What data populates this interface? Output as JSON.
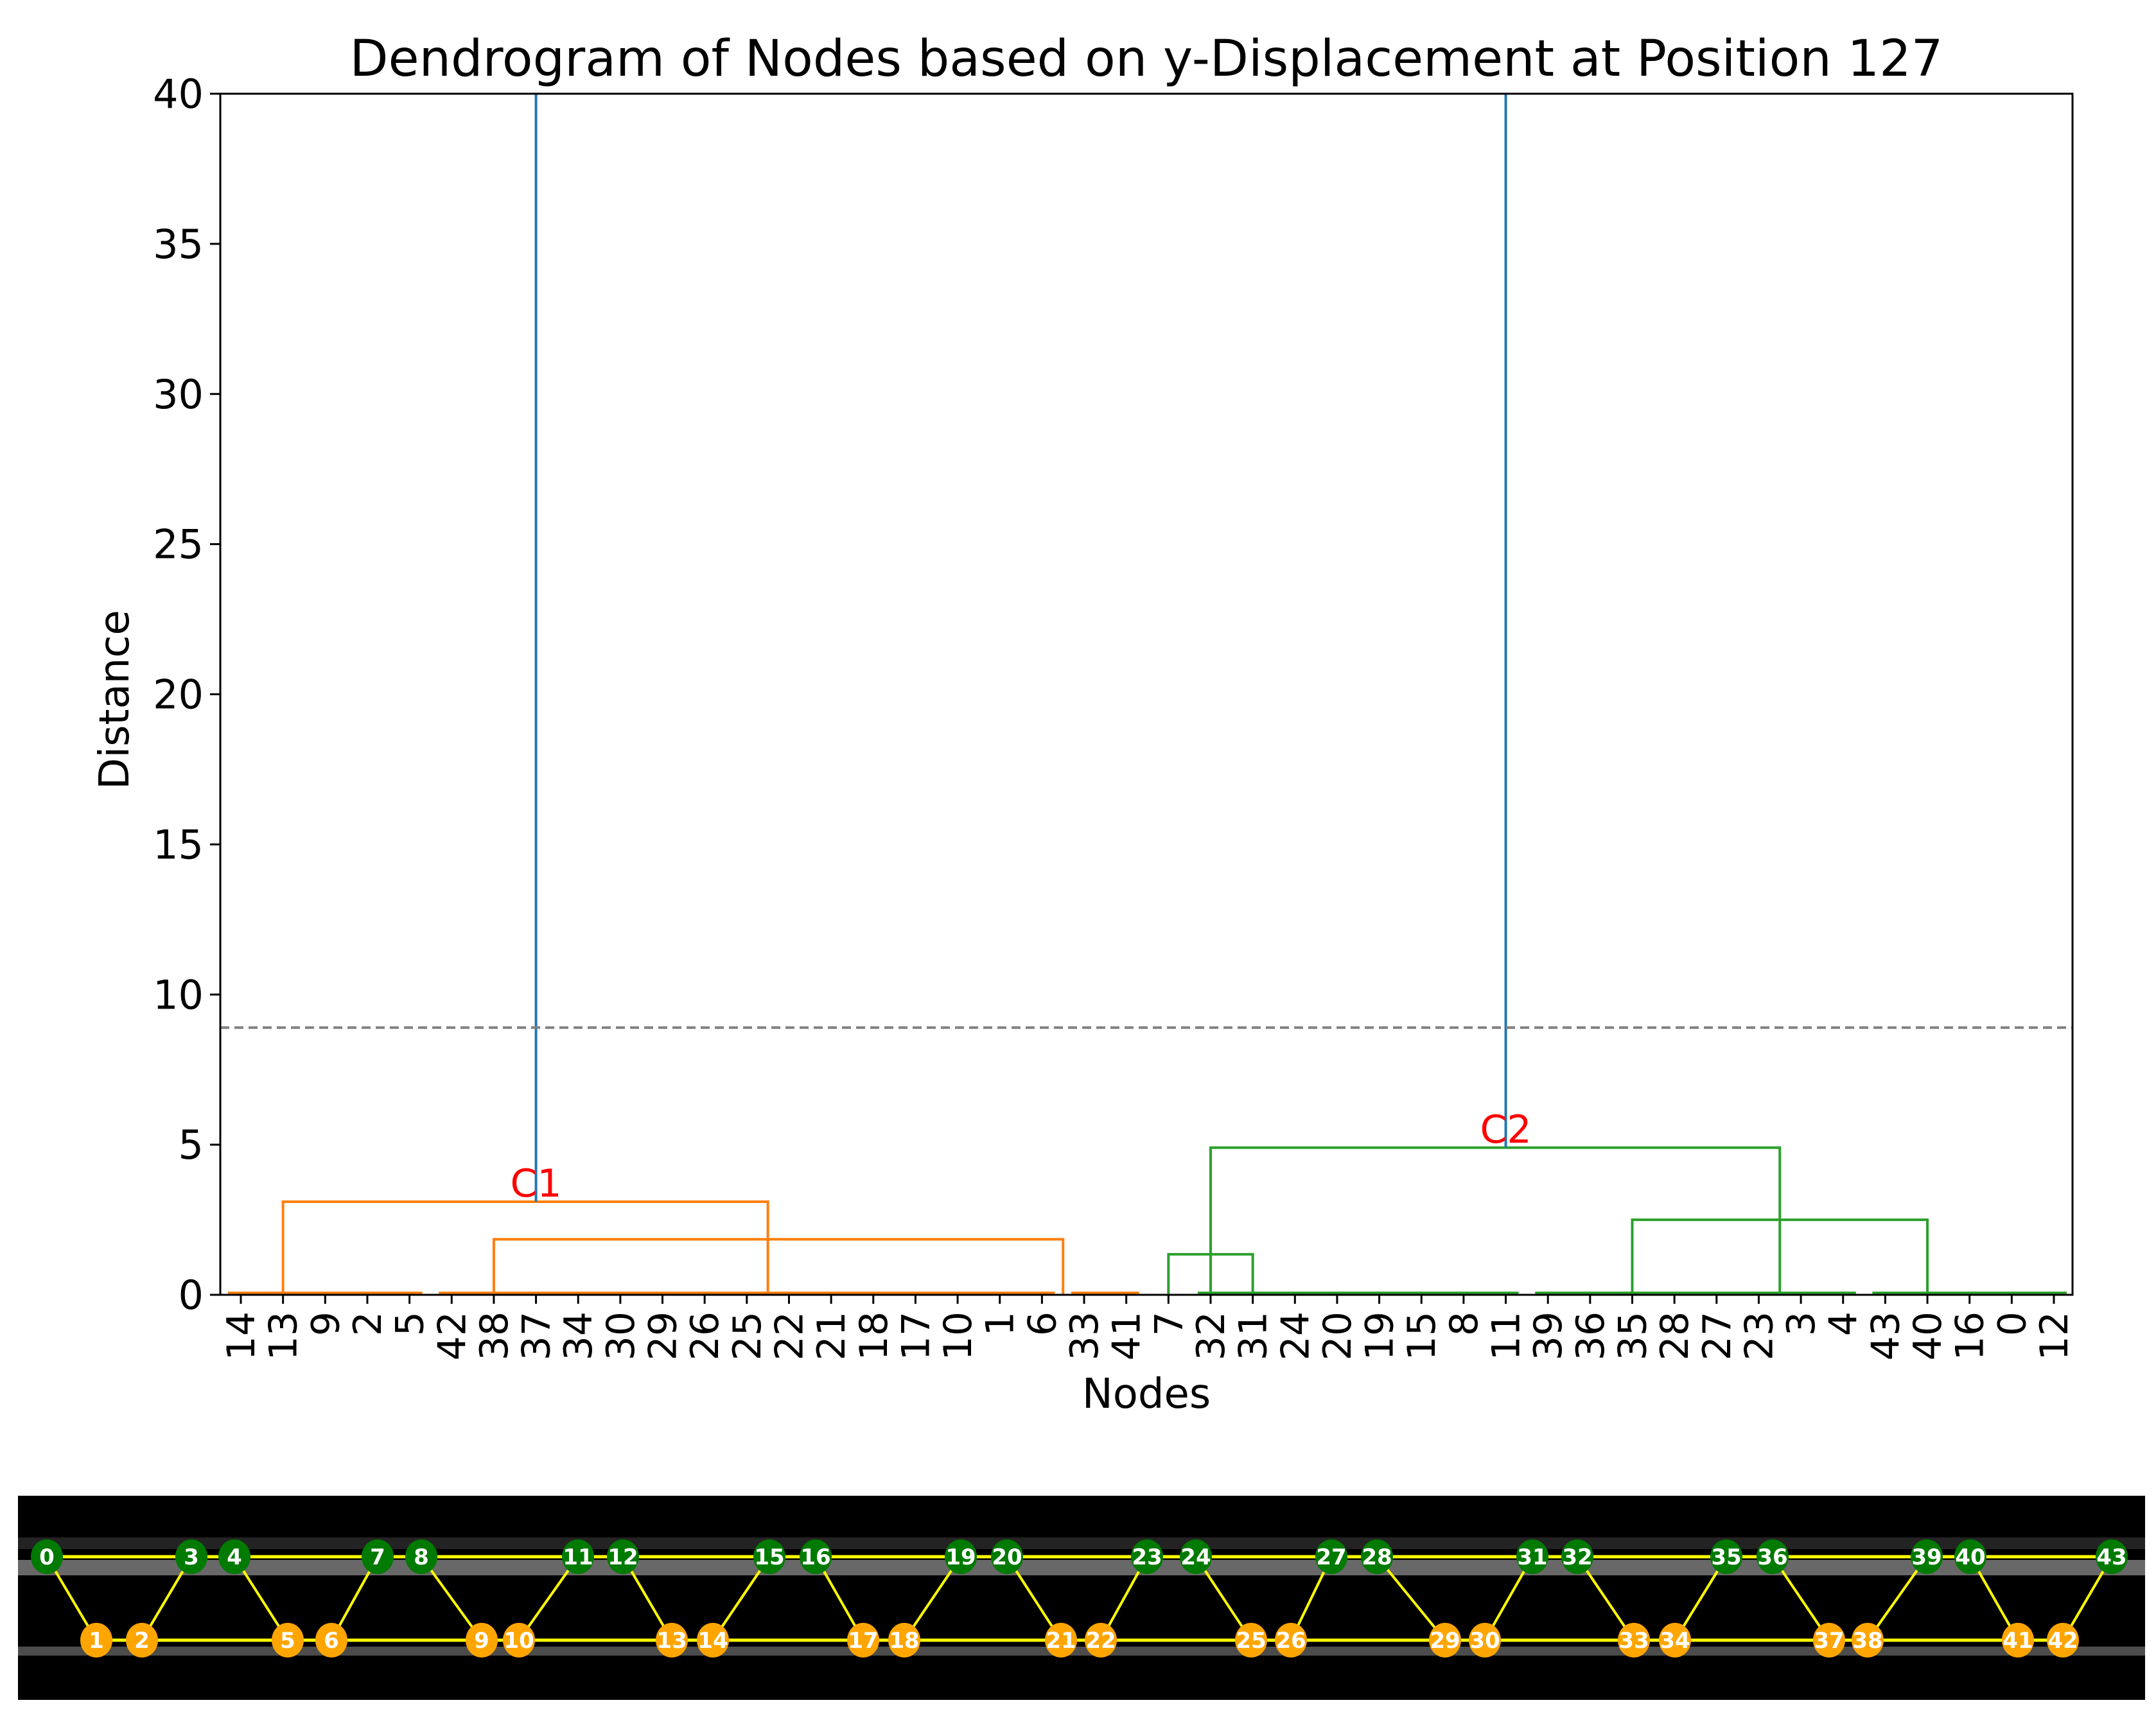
{
  "chart_data": {
    "type": "dendrogram",
    "title": "Dendrogram of Nodes based on y-Displacement at Position 127",
    "xlabel": "Nodes",
    "ylabel": "Distance",
    "ylim": [
      0,
      40
    ],
    "yticks": [
      0,
      5,
      10,
      15,
      20,
      25,
      30,
      35,
      40
    ],
    "threshold": 8.9,
    "leaf_order": [
      14,
      13,
      9,
      2,
      5,
      42,
      38,
      37,
      34,
      30,
      29,
      26,
      25,
      22,
      21,
      18,
      17,
      10,
      1,
      6,
      33,
      41,
      7,
      32,
      31,
      24,
      20,
      19,
      15,
      8,
      11,
      39,
      36,
      35,
      28,
      27,
      23,
      3,
      4,
      43,
      40,
      16,
      0,
      12
    ],
    "clusters": [
      {
        "label": "C1",
        "color": "#ff7f0e",
        "members": [
          14,
          13,
          9,
          2,
          5,
          42,
          38,
          37,
          34,
          30,
          29,
          26,
          25,
          22,
          21,
          18,
          17,
          10,
          1,
          6,
          33,
          41
        ],
        "top_merge_height": 3.1
      },
      {
        "label": "C2",
        "color": "#2ca02c",
        "members": [
          7,
          32,
          31,
          24,
          20,
          19,
          15,
          8,
          11,
          39,
          36,
          35,
          28,
          27,
          23,
          3,
          4,
          43,
          40,
          16,
          0,
          12
        ],
        "top_merge_height": 4.9
      }
    ],
    "links": [
      {
        "color": "#ff7f0e",
        "left_leaf_span": [
          0,
          4
        ],
        "right_leaf_span": [
          5,
          21
        ],
        "height": 3.1,
        "left_x_leaf": 1,
        "right_x_leaf": 12.5
      },
      {
        "color": "#ff7f0e",
        "left_leaf_span": [
          5,
          19
        ],
        "right_leaf_span": [
          20,
          21
        ],
        "height": 1.85,
        "left_x_leaf": 6,
        "right_x_leaf": 19.5
      },
      {
        "color": "#2ca02c",
        "height": 1.35,
        "left_x_leaf": 22,
        "right_x_leaf": 24
      },
      {
        "color": "#2ca02c",
        "height": 2.5,
        "left_x_leaf": 33,
        "right_x_leaf": 40
      },
      {
        "color": "#2ca02c",
        "height": 4.9,
        "left_x_leaf": 23,
        "right_x_leaf": 36.5
      },
      {
        "color": "#1f77b4",
        "height": 40,
        "left_x_leaf": 7,
        "right_x_leaf": 30
      }
    ],
    "zero_height_groups": [
      {
        "color": "#ff7f0e",
        "from_leaf": 0,
        "to_leaf": 4
      },
      {
        "color": "#ff7f0e",
        "from_leaf": 5,
        "to_leaf": 19
      },
      {
        "color": "#ff7f0e",
        "from_leaf": 20,
        "to_leaf": 21
      },
      {
        "color": "#2ca02c",
        "from_leaf": 23,
        "to_leaf": 30
      },
      {
        "color": "#2ca02c",
        "from_leaf": 31,
        "to_leaf": 38
      },
      {
        "color": "#2ca02c",
        "from_leaf": 39,
        "to_leaf": 43
      }
    ],
    "colors": {
      "c1": "#ff7f0e",
      "c2": "#2ca02c",
      "above_threshold": "#1f77b4",
      "threshold_line": "#808080",
      "cluster_label": "#ff0000"
    }
  },
  "graph_panel": {
    "top_nodes": [
      0,
      3,
      4,
      7,
      8,
      11,
      12,
      15,
      16,
      19,
      20,
      23,
      24,
      27,
      28,
      31,
      32,
      35,
      36,
      39,
      40,
      43
    ],
    "bottom_nodes": [
      1,
      2,
      5,
      6,
      9,
      10,
      13,
      14,
      17,
      18,
      21,
      22,
      25,
      26,
      29,
      30,
      33,
      34,
      37,
      38,
      41,
      42
    ],
    "top_color": "#007a00",
    "bottom_color": "#ffa500",
    "edge_color": "#ffff00"
  }
}
